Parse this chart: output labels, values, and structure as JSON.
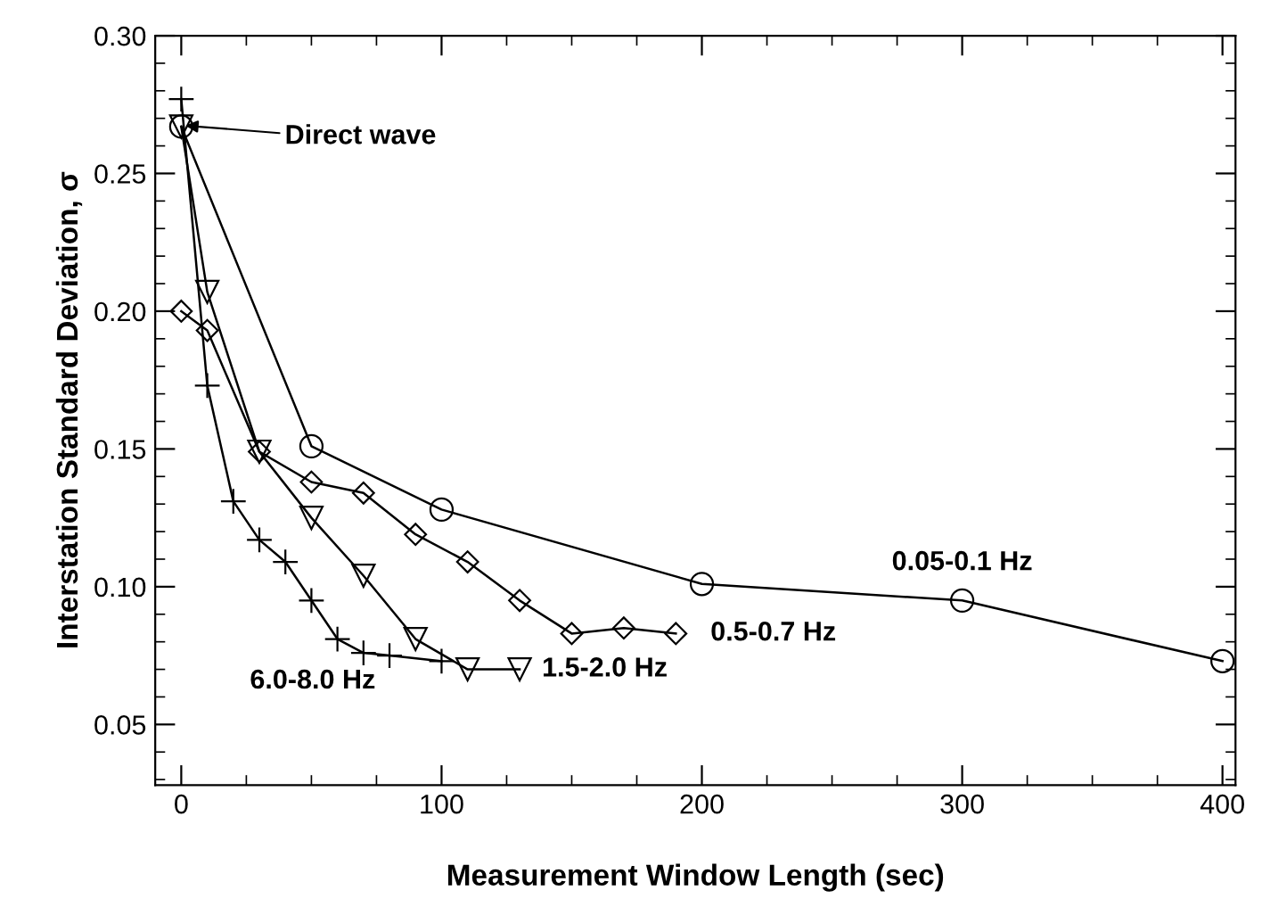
{
  "chart_data": {
    "type": "line",
    "xlabel": "Measurement Window Length (sec)",
    "ylabel": "Interstation Standard Deviation, σ",
    "xlim": [
      -10,
      405
    ],
    "ylim": [
      0.028,
      0.3
    ],
    "xticks": [
      0,
      100,
      200,
      300,
      400
    ],
    "yticks": [
      {
        "value": 0.05,
        "label": "0.05"
      },
      {
        "value": 0.1,
        "label": "0.10"
      },
      {
        "value": 0.15,
        "label": "0.15"
      },
      {
        "value": 0.2,
        "label": "0.20"
      },
      {
        "value": 0.25,
        "label": "0.25"
      },
      {
        "value": 0.3,
        "label": "0.30"
      }
    ],
    "grid": false,
    "legend": false,
    "line_style": "solid",
    "series": [
      {
        "name": "0.05-0.1 Hz",
        "color": "#000000",
        "marker": "circle",
        "x": [
          0,
          50,
          100,
          200,
          300,
          400
        ],
        "values": [
          0.267,
          0.151,
          0.128,
          0.101,
          0.095,
          0.073
        ]
      },
      {
        "name": "0.5-0.7 Hz",
        "color": "#000000",
        "marker": "diamond",
        "x": [
          0,
          10,
          30,
          50,
          70,
          90,
          110,
          130,
          150,
          170,
          190
        ],
        "values": [
          0.2,
          0.193,
          0.149,
          0.138,
          0.134,
          0.119,
          0.109,
          0.095,
          0.083,
          0.085,
          0.083
        ]
      },
      {
        "name": "1.5-2.0 Hz",
        "color": "#000000",
        "marker": "triangle",
        "x": [
          0,
          10,
          30,
          50,
          70,
          90,
          110,
          130
        ],
        "values": [
          0.267,
          0.207,
          0.149,
          0.125,
          0.104,
          0.081,
          0.07,
          0.07
        ]
      },
      {
        "name": "6.0-8.0 Hz",
        "color": "#000000",
        "marker": "cross",
        "x": [
          0,
          10,
          20,
          30,
          40,
          50,
          60,
          70,
          80,
          100
        ],
        "values": [
          0.277,
          0.173,
          0.131,
          0.117,
          0.109,
          0.095,
          0.081,
          0.076,
          0.075,
          0.073
        ]
      }
    ],
    "annotations": [
      "Direct wave"
    ]
  }
}
